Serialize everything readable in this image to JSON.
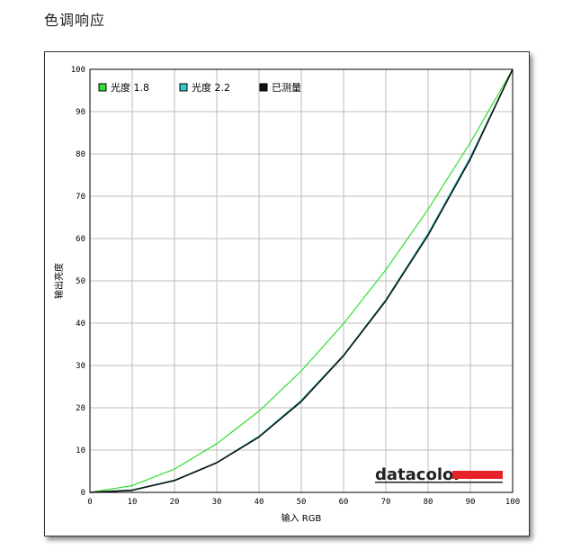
{
  "page": {
    "title": "色调响应"
  },
  "chart_data": {
    "type": "line",
    "title": "",
    "xlabel": "输入 RGB",
    "ylabel": "输出亮度",
    "xlim": [
      0,
      100
    ],
    "ylim": [
      0,
      100
    ],
    "x_ticks": [
      0,
      10,
      20,
      30,
      40,
      50,
      60,
      70,
      80,
      90,
      100
    ],
    "y_ticks": [
      0,
      10,
      20,
      30,
      40,
      50,
      60,
      70,
      80,
      90,
      100
    ],
    "grid": true,
    "legend_position": "top-left",
    "series": [
      {
        "name": "光度 1.8",
        "color": "#33dd33",
        "x": [
          0,
          10,
          20,
          30,
          40,
          50,
          60,
          70,
          80,
          90,
          100
        ],
        "y": [
          0,
          1.6,
          5.5,
          11.5,
          19.2,
          28.7,
          39.9,
          52.6,
          66.9,
          82.7,
          100
        ]
      },
      {
        "name": "光度 2.2",
        "color": "#33cccc",
        "x": [
          0,
          10,
          20,
          30,
          40,
          50,
          60,
          70,
          80,
          90,
          100
        ],
        "y": [
          0,
          0.6,
          2.9,
          7.1,
          13.3,
          21.8,
          32.5,
          45.6,
          61.2,
          79.3,
          100
        ]
      },
      {
        "name": "已测量",
        "color": "#111111",
        "x": [
          0,
          10,
          20,
          30,
          40,
          50,
          60,
          70,
          80,
          90,
          100
        ],
        "y": [
          0,
          0.5,
          2.8,
          7.0,
          13.1,
          21.5,
          32.3,
          45.3,
          60.8,
          78.8,
          100
        ]
      }
    ]
  },
  "brand": {
    "logo": "datacolor",
    "accent": "#e8222a"
  }
}
